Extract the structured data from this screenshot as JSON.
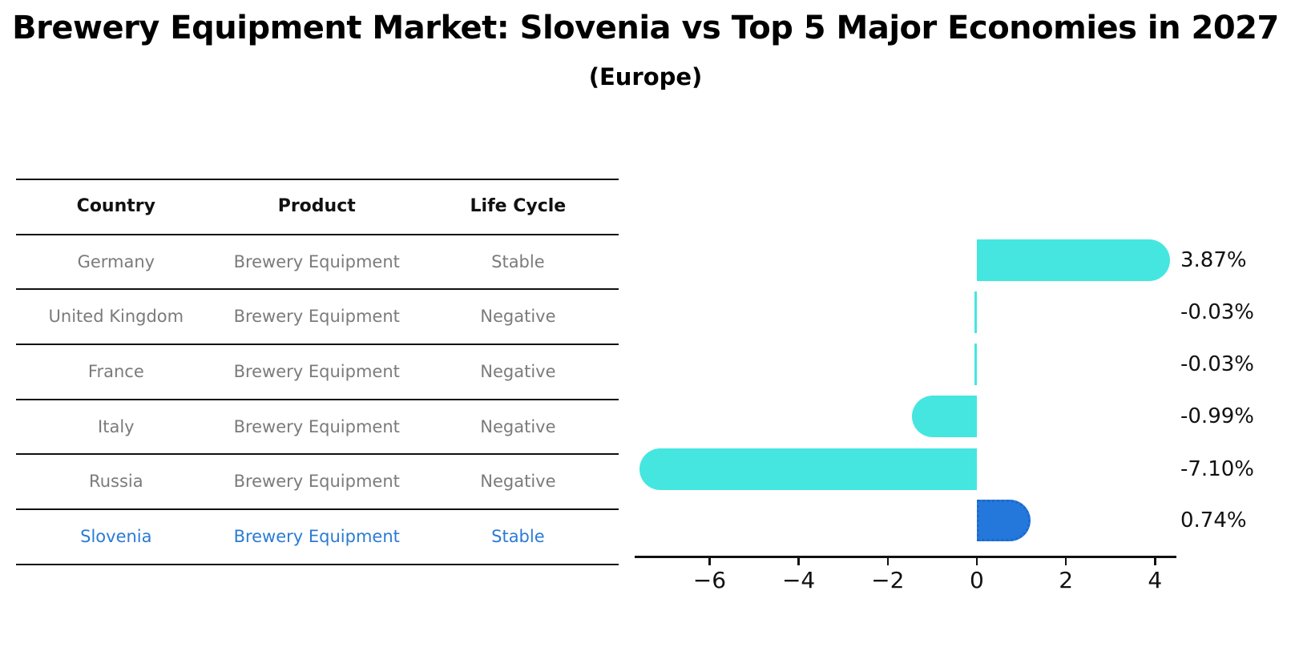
{
  "title": "Brewery Equipment Market: Slovenia vs Top 5 Major Economies in 2027",
  "subtitle": "(Europe)",
  "table": {
    "headers": [
      "Country",
      "Product",
      "Life Cycle"
    ],
    "rows": [
      {
        "cells": [
          "Germany",
          "Brewery Equipment",
          "Stable"
        ],
        "highlighted": false
      },
      {
        "cells": [
          "United Kingdom",
          "Brewery Equipment",
          "Negative"
        ],
        "highlighted": false
      },
      {
        "cells": [
          "France",
          "Brewery Equipment",
          "Negative"
        ],
        "highlighted": false
      },
      {
        "cells": [
          "Italy",
          "Brewery Equipment",
          "Negative"
        ],
        "highlighted": false
      },
      {
        "cells": [
          "Russia",
          "Brewery Equipment",
          "Negative"
        ],
        "highlighted": false
      },
      {
        "cells": [
          "Slovenia",
          "Brewery Equipment",
          "Stable"
        ],
        "highlighted": true
      }
    ]
  },
  "chart_data": {
    "type": "bar",
    "orientation": "horizontal",
    "title": "Brewery Equipment Market: Slovenia vs Top 5 Major Economies in 2027",
    "subtitle": "(Europe)",
    "categories": [
      "Germany",
      "United Kingdom",
      "France",
      "Italy",
      "Russia",
      "Slovenia"
    ],
    "values": [
      3.87,
      -0.03,
      -0.03,
      -0.99,
      -7.1,
      0.74
    ],
    "value_labels": [
      "3.87%",
      "-0.03%",
      "-0.03%",
      "-0.99%",
      "-7.10%",
      "0.74%"
    ],
    "x_tick_values": [
      -6,
      -4,
      -2,
      0,
      2,
      4
    ],
    "x_tick_labels": [
      "−6",
      "−4",
      "−2",
      "0",
      "2",
      "4"
    ],
    "xlim": [
      -7.68,
      4.48
    ],
    "grid": false,
    "legend": false,
    "highlight_index": 5
  },
  "colors": {
    "bar": "#45E6E0",
    "highlight_bar": "#2478DB",
    "highlight_bar_edge": "#1e68cc",
    "table_text": "#7b7b7b",
    "table_header_text": "#111111",
    "highlight_text": "#2b7bd4",
    "axis": "#111111",
    "value_label_text": "#111111"
  }
}
